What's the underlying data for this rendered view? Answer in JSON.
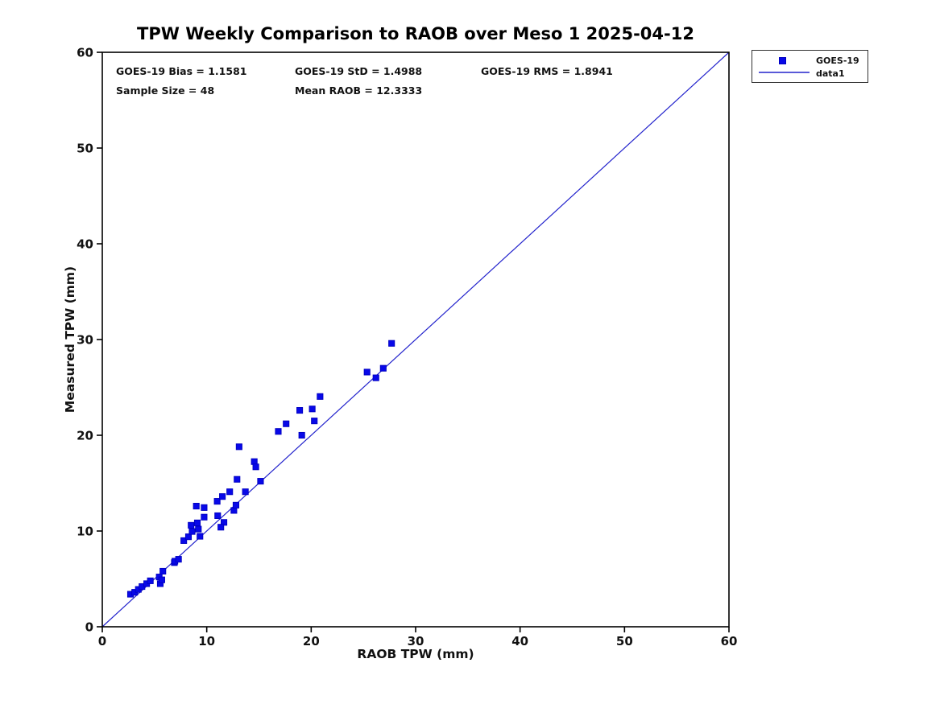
{
  "chart_data": {
    "type": "scatter",
    "title": "TPW Weekly Comparison to RAOB over Meso 1 2025-04-12",
    "xlabel": "RAOB TPW (mm)",
    "ylabel": "Measured TPW (mm)",
    "xlim": [
      0,
      60
    ],
    "ylim": [
      0,
      60
    ],
    "xticks": [
      0,
      10,
      20,
      30,
      40,
      50,
      60
    ],
    "yticks": [
      0,
      10,
      20,
      30,
      40,
      50,
      60
    ],
    "grid": false,
    "legend_position": "outside-top-right",
    "stats": {
      "bias_label": "GOES-19 Bias = 1.1581",
      "std_label": "GOES-19 StD = 1.4988",
      "rms_label": "GOES-19 RMS = 1.8941",
      "sample_label": "Sample Size = 48",
      "mean_raob_label": "Mean RAOB = 12.3333",
      "bias": 1.1581,
      "std": 1.4988,
      "rms": 1.8941,
      "sample_size": 48,
      "mean_raob": 12.3333
    },
    "colors": {
      "marker_fill": "#0808e8",
      "marker_edge": "#0000c0",
      "line": "#2222cc",
      "frame": "#000000",
      "text": "#111111"
    },
    "series": [
      {
        "name": "GOES-19",
        "type": "scatter",
        "marker": "square",
        "points": [
          [
            2.7,
            3.4
          ],
          [
            3.1,
            3.6
          ],
          [
            3.45,
            3.9
          ],
          [
            3.8,
            4.2
          ],
          [
            4.25,
            4.5
          ],
          [
            4.6,
            4.8
          ],
          [
            5.45,
            5.2
          ],
          [
            5.55,
            4.5
          ],
          [
            5.7,
            4.9
          ],
          [
            5.8,
            5.8
          ],
          [
            6.9,
            6.7
          ],
          [
            6.95,
            6.85
          ],
          [
            7.3,
            7.05
          ],
          [
            7.8,
            9.0
          ],
          [
            8.25,
            9.4
          ],
          [
            8.6,
            9.95
          ],
          [
            8.5,
            10.6
          ],
          [
            9.1,
            10.85
          ],
          [
            9.2,
            10.2
          ],
          [
            9.0,
            12.6
          ],
          [
            9.75,
            12.45
          ],
          [
            9.75,
            11.45
          ],
          [
            9.35,
            9.45
          ],
          [
            11.05,
            11.6
          ],
          [
            11.0,
            13.1
          ],
          [
            11.5,
            13.6
          ],
          [
            11.65,
            10.9
          ],
          [
            11.35,
            10.4
          ],
          [
            12.6,
            12.15
          ],
          [
            12.8,
            12.7
          ],
          [
            12.2,
            14.1
          ],
          [
            13.7,
            14.1
          ],
          [
            12.9,
            15.4
          ],
          [
            15.15,
            15.2
          ],
          [
            13.1,
            18.8
          ],
          [
            14.55,
            17.25
          ],
          [
            14.7,
            16.7
          ],
          [
            16.85,
            20.4
          ],
          [
            17.6,
            21.2
          ],
          [
            18.9,
            22.6
          ],
          [
            20.1,
            22.75
          ],
          [
            20.85,
            24.05
          ],
          [
            20.3,
            21.5
          ],
          [
            19.1,
            20.0
          ],
          [
            25.35,
            26.6
          ],
          [
            26.2,
            26.0
          ],
          [
            26.9,
            27.0
          ],
          [
            27.7,
            29.6
          ]
        ]
      },
      {
        "name": "data1",
        "type": "line",
        "points": [
          [
            0,
            0
          ],
          [
            60,
            60
          ]
        ]
      }
    ]
  },
  "legend": {
    "series_label": "GOES-19",
    "line_label": "data1"
  }
}
